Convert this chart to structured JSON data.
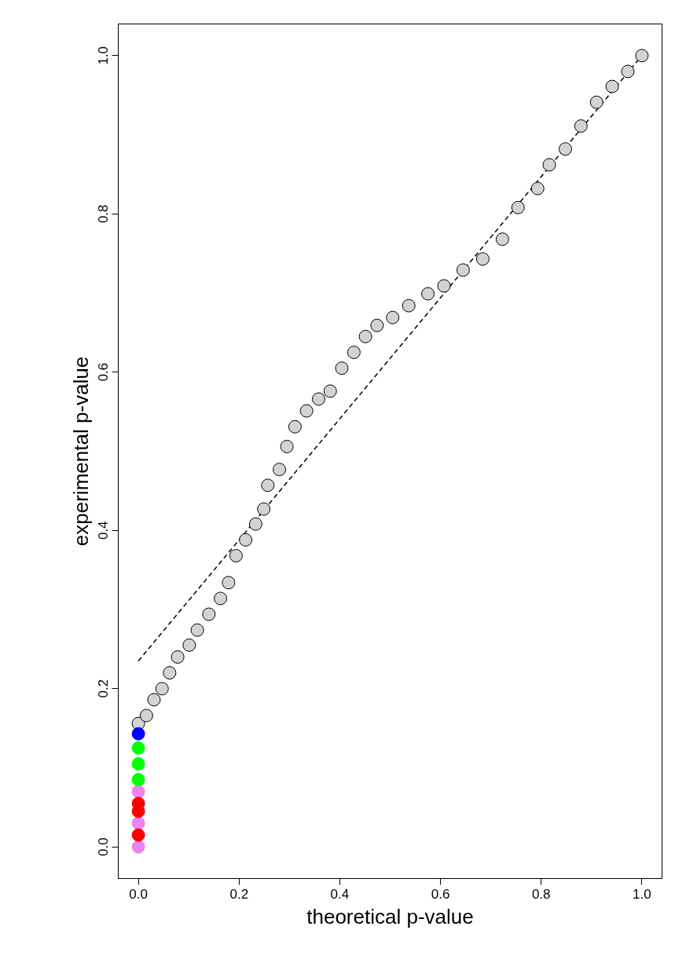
{
  "chart_data": {
    "type": "scatter",
    "xlabel": "theoretical p-value",
    "ylabel": "experimental p-value",
    "xlim": [
      -0.04,
      1.04
    ],
    "ylim": [
      -0.04,
      1.04
    ],
    "xticks": [
      {
        "value": 0,
        "label": "0.0"
      },
      {
        "value": 0.2,
        "label": "0.2"
      },
      {
        "value": 0.4,
        "label": "0.4"
      },
      {
        "value": 0.6,
        "label": "0.6"
      },
      {
        "value": 0.8,
        "label": "0.8"
      },
      {
        "value": 1,
        "label": "1.0"
      }
    ],
    "yticks": [
      {
        "value": 0,
        "label": "0.0"
      },
      {
        "value": 0.2,
        "label": "0.2"
      },
      {
        "value": 0.4,
        "label": "0.4"
      },
      {
        "value": 0.6,
        "label": "0.6"
      },
      {
        "value": 0.8,
        "label": "0.8"
      },
      {
        "value": 1,
        "label": "1.0"
      }
    ],
    "grid": false,
    "marker": "circle",
    "series": [
      {
        "type": "line",
        "line_style": "dashed",
        "marker": "none",
        "color": "#000000",
        "x": [
          0,
          1
        ],
        "values": [
          0.235,
          1
        ]
      },
      {
        "color": "#d3d3d3",
        "x": [
          0,
          0.016,
          0.031,
          0.047,
          0.062,
          0.078,
          0.101,
          0.117,
          0.14,
          0.163,
          0.179,
          0.194,
          0.213,
          0.233,
          0.249,
          0.257,
          0.28,
          0.295,
          0.311,
          0.334,
          0.358,
          0.381,
          0.404,
          0.428,
          0.451,
          0.474,
          0.505,
          0.537,
          0.575,
          0.607,
          0.645,
          0.684,
          0.723,
          0.754,
          0.793,
          0.816,
          0.848,
          0.879,
          0.91,
          0.941,
          0.972,
          1.0
        ],
        "values": [
          0.156,
          0.166,
          0.186,
          0.2,
          0.22,
          0.24,
          0.255,
          0.274,
          0.294,
          0.314,
          0.334,
          0.368,
          0.388,
          0.408,
          0.427,
          0.457,
          0.477,
          0.506,
          0.531,
          0.551,
          0.566,
          0.576,
          0.605,
          0.625,
          0.645,
          0.659,
          0.669,
          0.684,
          0.699,
          0.709,
          0.729,
          0.743,
          0.768,
          0.808,
          0.832,
          0.862,
          0.882,
          0.911,
          0.941,
          0.961,
          0.98,
          1.0
        ]
      },
      {
        "color": "#ee82ee",
        "x": [
          0,
          0,
          0
        ],
        "values": [
          0.0,
          0.03,
          0.07
        ]
      },
      {
        "color": "#0000ff",
        "x": [
          0
        ],
        "values": [
          0.143
        ]
      },
      {
        "color": "#00ff00",
        "x": [
          0,
          0,
          0
        ],
        "values": [
          0.085,
          0.105,
          0.125
        ]
      },
      {
        "color": "#ff0000",
        "x": [
          0,
          0,
          0
        ],
        "values": [
          0.015,
          0.045,
          0.055
        ]
      }
    ]
  }
}
